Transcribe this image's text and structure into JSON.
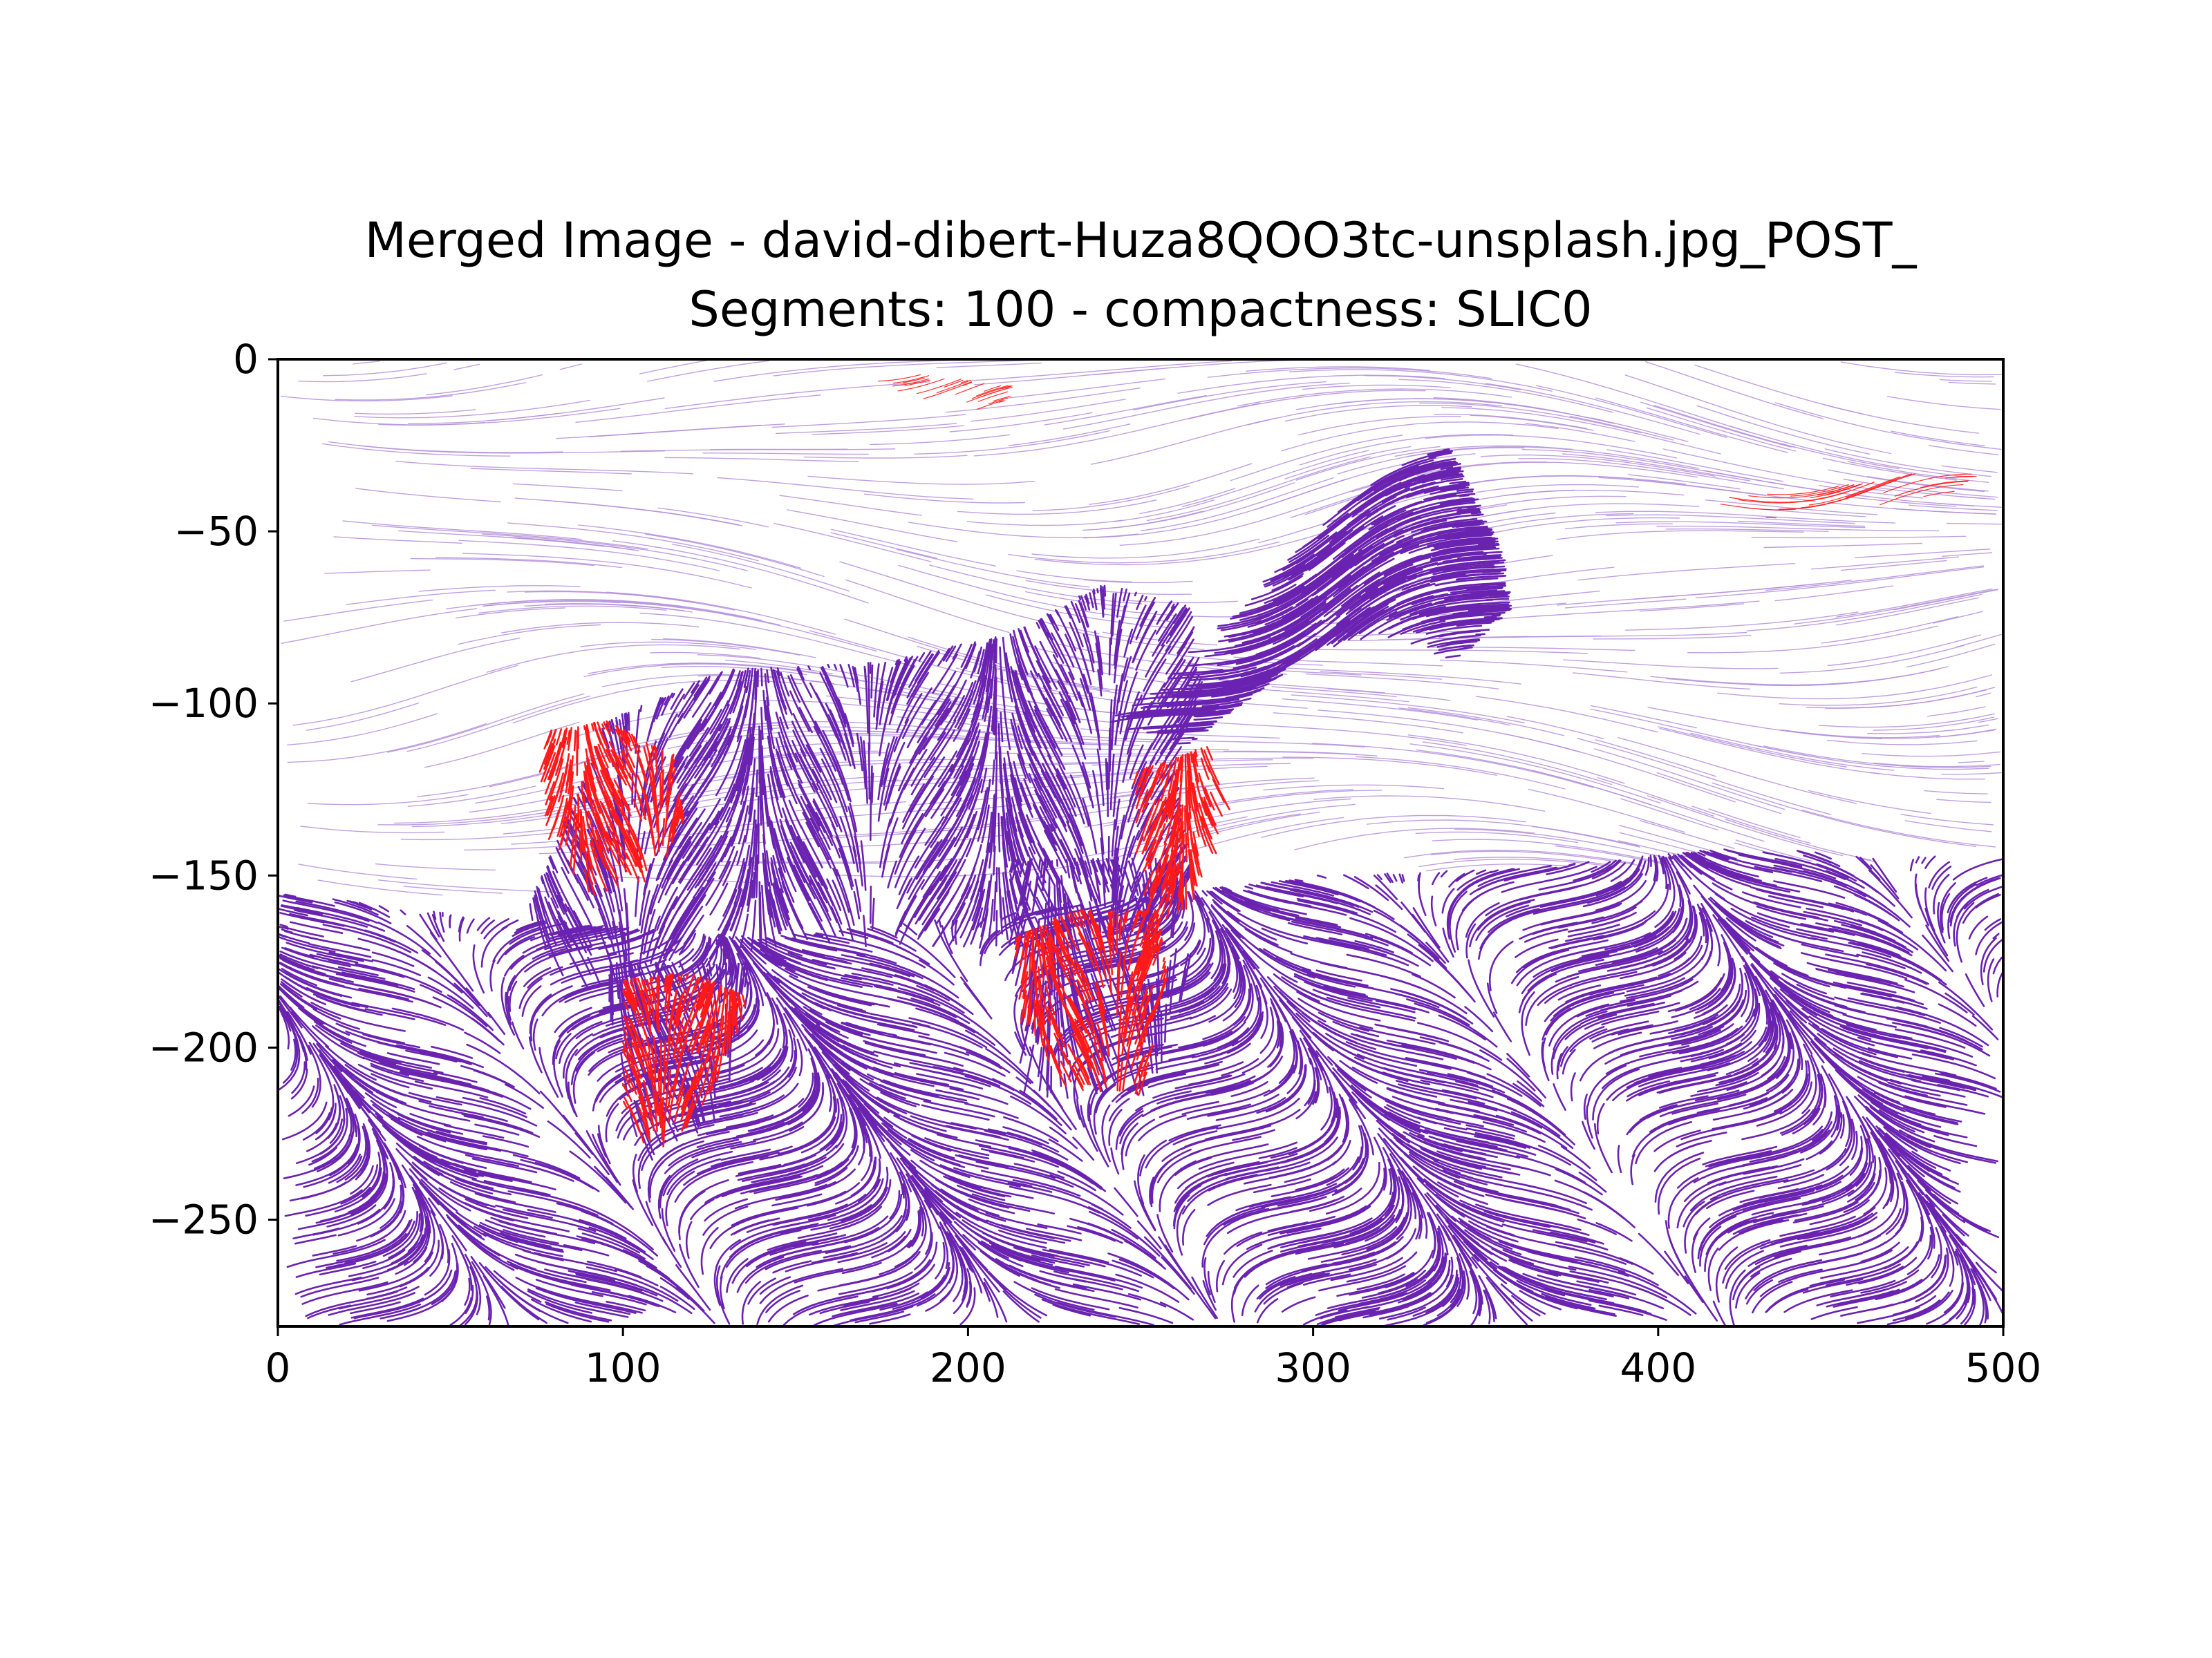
{
  "chart_data": {
    "type": "streamplot",
    "title": "Merged Image - david-dibert-Huza8QOO3tc-unsplash.jpg_POST_",
    "subtitle": "Segments: 100 - compactness: SLIC0",
    "xlabel": "",
    "ylabel": "",
    "xlim": [
      0,
      500
    ],
    "ylim": [
      -281,
      0
    ],
    "x_ticks": [
      0,
      100,
      200,
      300,
      400,
      500
    ],
    "y_ticks": [
      0,
      -50,
      -100,
      -150,
      -200,
      -250
    ],
    "x_tick_labels": [
      "0",
      "100",
      "200",
      "300",
      "400",
      "500"
    ],
    "y_tick_labels": [
      "0",
      "−50",
      "−100",
      "−150",
      "−200",
      "−250"
    ],
    "grid": false,
    "legend": "none",
    "colors": {
      "background_streamlines": "#b58fdc",
      "dense_streamlines": "#6a22b0",
      "highlight_streamlines": "#ff1a1a"
    },
    "regions": [
      {
        "name": "sky",
        "style": "light",
        "polygon": [
          [
            0,
            0
          ],
          [
            500,
            0
          ],
          [
            500,
            -145
          ],
          [
            0,
            -157
          ]
        ]
      },
      {
        "name": "ground",
        "style": "dense",
        "polygon": [
          [
            0,
            -155
          ],
          [
            60,
            -162
          ],
          [
            140,
            -168
          ],
          [
            220,
            -160
          ],
          [
            300,
            -150
          ],
          [
            360,
            -148
          ],
          [
            420,
            -142
          ],
          [
            500,
            -145
          ],
          [
            500,
            -281
          ],
          [
            0,
            -281
          ]
        ]
      },
      {
        "name": "zebra-neck-head",
        "style": "dense",
        "polygon": [
          [
            240,
            -105
          ],
          [
            270,
            -80
          ],
          [
            300,
            -50
          ],
          [
            325,
            -30
          ],
          [
            340,
            -25
          ],
          [
            355,
            -55
          ],
          [
            358,
            -72
          ],
          [
            340,
            -90
          ],
          [
            320,
            -80
          ],
          [
            300,
            -85
          ],
          [
            280,
            -100
          ],
          [
            260,
            -115
          ]
        ]
      },
      {
        "name": "zebra-body",
        "style": "dense",
        "polygon": [
          [
            95,
            -105
          ],
          [
            130,
            -90
          ],
          [
            175,
            -88
          ],
          [
            210,
            -80
          ],
          [
            240,
            -65
          ],
          [
            265,
            -72
          ],
          [
            268,
            -95
          ],
          [
            260,
            -118
          ],
          [
            265,
            -150
          ],
          [
            255,
            -168
          ],
          [
            215,
            -172
          ],
          [
            150,
            -170
          ],
          [
            110,
            -180
          ],
          [
            85,
            -185
          ],
          [
            72,
            -160
          ]
        ]
      },
      {
        "name": "zebra-front-legs",
        "style": "dense",
        "polygon": [
          [
            210,
            -145
          ],
          [
            260,
            -145
          ],
          [
            265,
            -175
          ],
          [
            255,
            -215
          ],
          [
            215,
            -215
          ]
        ]
      },
      {
        "name": "zebra-hind-legs",
        "style": "dense",
        "polygon": [
          [
            95,
            -175
          ],
          [
            138,
            -175
          ],
          [
            130,
            -220
          ],
          [
            105,
            -235
          ],
          [
            98,
            -210
          ]
        ]
      },
      {
        "name": "rump-highlight",
        "style": "highlight",
        "polygon": [
          [
            78,
            -108
          ],
          [
            95,
            -105
          ],
          [
            115,
            -115
          ],
          [
            118,
            -135
          ],
          [
            112,
            -150
          ],
          [
            90,
            -158
          ],
          [
            78,
            -140
          ],
          [
            75,
            -122
          ]
        ]
      },
      {
        "name": "hind-leg-highlight",
        "style": "highlight",
        "polygon": [
          [
            100,
            -180
          ],
          [
            120,
            -178
          ],
          [
            138,
            -186
          ],
          [
            125,
            -215
          ],
          [
            110,
            -235
          ],
          [
            100,
            -220
          ]
        ]
      },
      {
        "name": "front-leg-highlight",
        "style": "highlight",
        "polygon": [
          [
            213,
            -168
          ],
          [
            230,
            -160
          ],
          [
            255,
            -160
          ],
          [
            258,
            -180
          ],
          [
            250,
            -215
          ],
          [
            228,
            -212
          ],
          [
            215,
            -192
          ]
        ]
      },
      {
        "name": "chest-highlight",
        "style": "highlight",
        "polygon": [
          [
            248,
            -120
          ],
          [
            270,
            -112
          ],
          [
            278,
            -130
          ],
          [
            265,
            -160
          ],
          [
            252,
            -165
          ],
          [
            248,
            -140
          ]
        ]
      },
      {
        "name": "sky-highlight-top",
        "style": "highlight-thin",
        "polygon": [
          [
            170,
            -2
          ],
          [
            215,
            -8
          ],
          [
            208,
            -16
          ],
          [
            175,
            -10
          ]
        ]
      },
      {
        "name": "sky-highlight-right",
        "style": "highlight-thin",
        "polygon": [
          [
            415,
            -40
          ],
          [
            460,
            -36
          ],
          [
            500,
            -28
          ],
          [
            490,
            -38
          ],
          [
            455,
            -44
          ],
          [
            420,
            -48
          ]
        ]
      }
    ]
  }
}
